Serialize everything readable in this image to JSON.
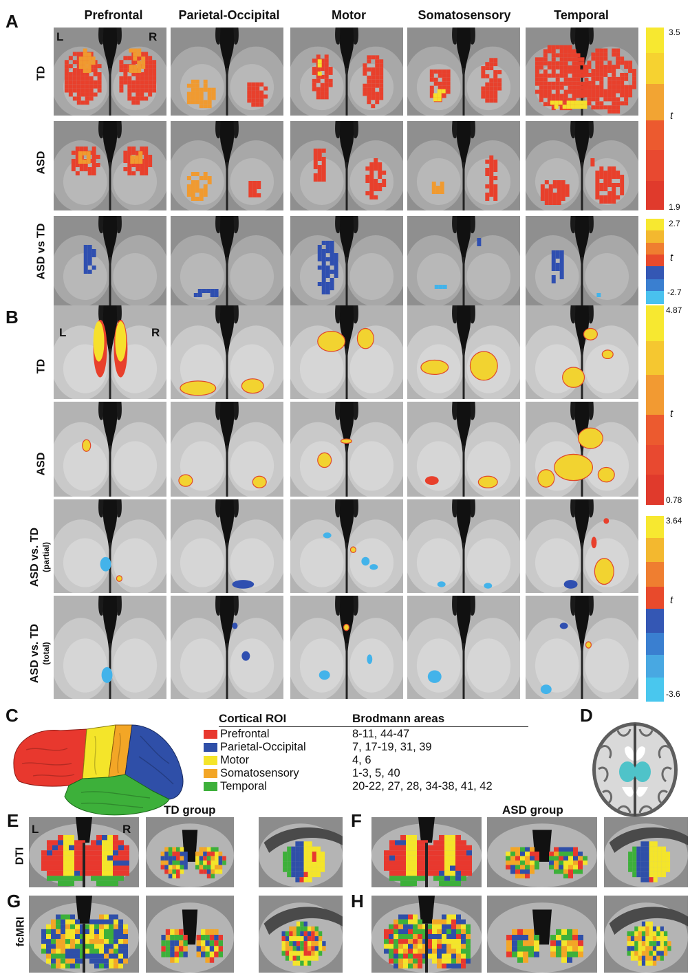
{
  "panel_letters": {
    "A": "A",
    "B": "B",
    "C": "C",
    "D": "D",
    "E": "E",
    "F": "F",
    "G": "G",
    "H": "H"
  },
  "columns": [
    "Prefrontal",
    "Parietal-Occipital",
    "Motor",
    "Somatosensory",
    "Temporal"
  ],
  "panelA": {
    "rows": [
      "TD",
      "ASD",
      "ASD vs TD"
    ],
    "bar1": {
      "max": "3.5",
      "min": "1.9",
      "label": "t"
    },
    "bar2": {
      "max": "2.7",
      "min": "-2.7",
      "label": "t"
    },
    "left": "L",
    "right": "R"
  },
  "panelB": {
    "rows": [
      {
        "main": "TD",
        "sub": ""
      },
      {
        "main": "ASD",
        "sub": ""
      },
      {
        "main": "ASD vs. TD",
        "sub": "(partial)"
      },
      {
        "main": "ASD vs. TD",
        "sub": "(total)"
      }
    ],
    "bar1": {
      "max": "4.87",
      "min": "0.78",
      "label": "t"
    },
    "bar2": {
      "max": "3.64",
      "min": "-3.6",
      "label": "t"
    },
    "left": "L",
    "right": "R"
  },
  "panelC": {
    "header_roi": "Cortical ROI",
    "header_ba": "Brodmann areas",
    "rows": [
      {
        "roi": "Prefrontal",
        "ba": "8-11, 44-47",
        "color": "#e8382e"
      },
      {
        "roi": "Parietal-Occipital",
        "ba": "7, 17-19, 31, 39",
        "color": "#2f4fa8"
      },
      {
        "roi": "Motor",
        "ba": "4, 6",
        "color": "#f4e52a"
      },
      {
        "roi": "Somatosensory",
        "ba": "1-3, 5, 40",
        "color": "#f3a626"
      },
      {
        "roi": "Temporal",
        "ba": "20-22, 27, 28, 34-38, 41, 42",
        "color": "#3db03a"
      }
    ]
  },
  "bottom": {
    "td_group": "TD group",
    "asd_group": "ASD group",
    "row_dti": "DTI",
    "row_fcmri": "fcMRI",
    "left": "L",
    "right": "R"
  }
}
